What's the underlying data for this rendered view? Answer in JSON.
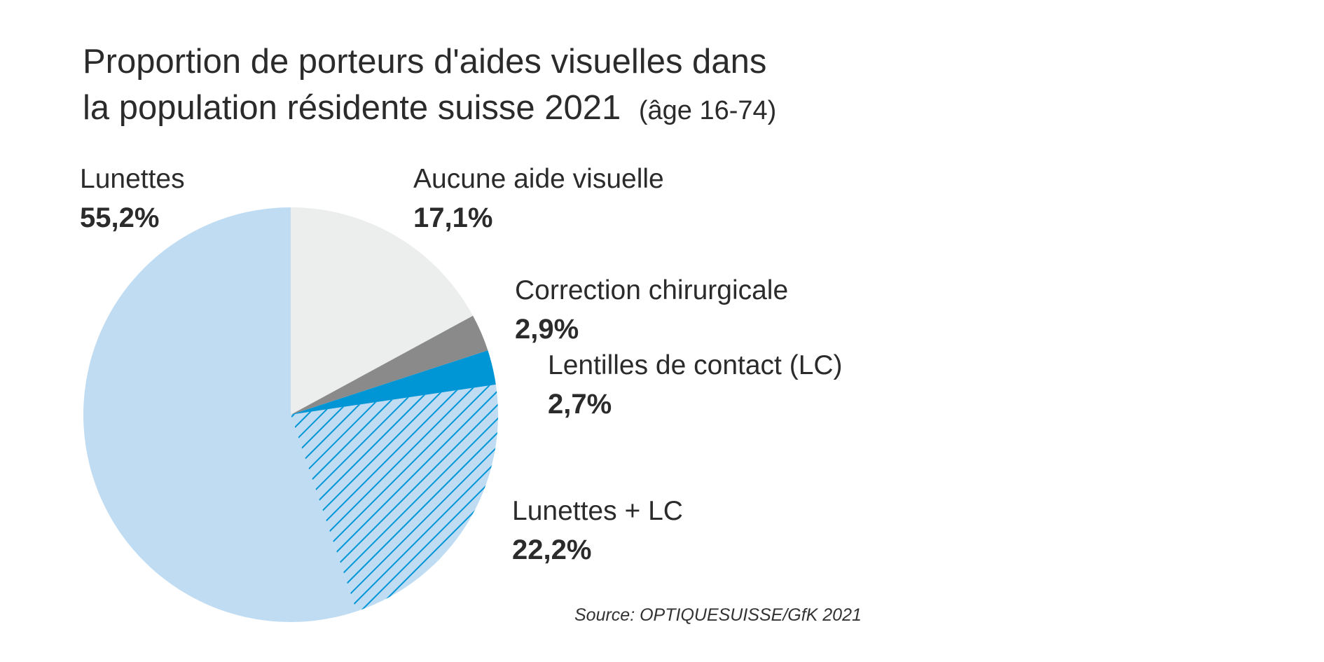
{
  "chart_data": {
    "type": "pie",
    "title_line1": "Proportion de porteurs d'aides visuelles dans",
    "title_line2": "la population résidente suisse 2021",
    "title_suffix": "(âge 16-74)",
    "source": "Source: OPTIQUESUISSE/GfK 2021",
    "slices": [
      {
        "label": "Aucune aide visuelle",
        "value_label": "17,1%",
        "value": 17.1,
        "color": "#eceded",
        "pattern": "none"
      },
      {
        "label": "Correction chirurgicale",
        "value_label": "2,9%",
        "value": 2.9,
        "color": "#8a8a8a",
        "pattern": "none"
      },
      {
        "label": "Lentilles de contact (LC)",
        "value_label": "2,7%",
        "value": 2.7,
        "color": "#0096d6",
        "pattern": "none"
      },
      {
        "label": "Lunettes + LC",
        "value_label": "22,2%",
        "value": 22.2,
        "color": "#bfdcf3",
        "pattern": "hatch",
        "hatch_color": "#0096d6"
      },
      {
        "label": "Lunettes",
        "value_label": "55,2%",
        "value": 55.2,
        "color": "#bfdcf3",
        "pattern": "none"
      }
    ]
  }
}
